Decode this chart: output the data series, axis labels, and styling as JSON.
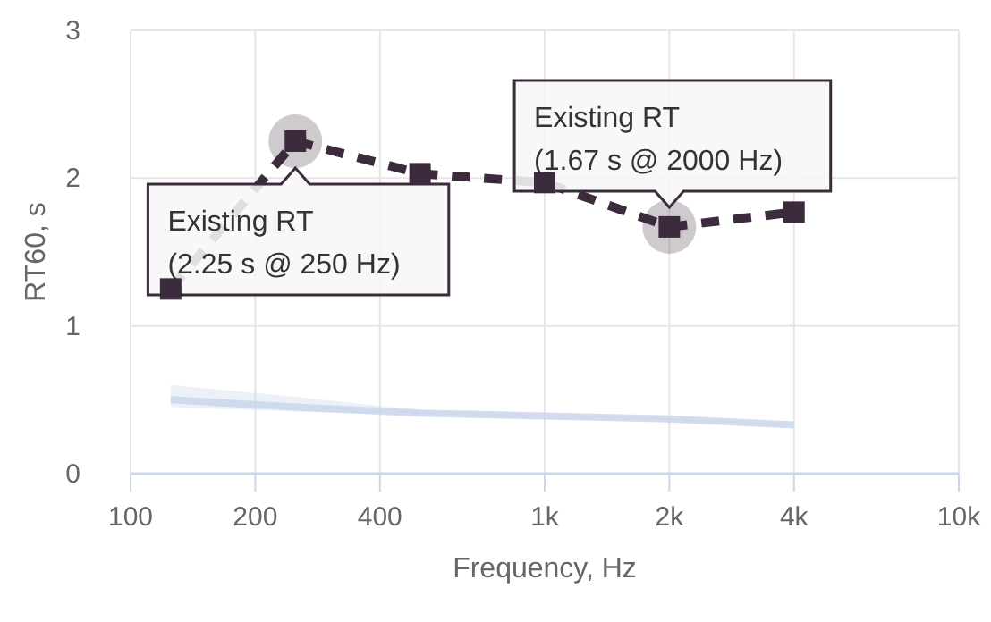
{
  "chart_data": {
    "type": "line",
    "xlabel": "Frequency, Hz",
    "ylabel": "RT60, s",
    "x": [
      125,
      250,
      500,
      1000,
      2000,
      4000
    ],
    "series": [
      {
        "color": "#3b2b3d",
        "values": [
          1.25,
          2.25,
          2.03,
          1.97,
          1.67,
          1.77
        ],
        "marker": "square",
        "line_style": "dashed"
      },
      {
        "color": "#c8d5e8",
        "values": [
          0.5,
          0.45,
          0.41,
          0.39,
          0.37,
          0.33
        ],
        "marker": "none",
        "line_style": "solid",
        "lower": [
          0.45,
          0.42,
          0.4,
          0.38,
          0.36,
          0.32
        ],
        "upper": [
          0.6,
          0.52,
          0.43,
          0.4,
          0.38,
          0.34
        ]
      }
    ],
    "log": "x",
    "xlim": [
      100,
      10000
    ],
    "xticks": [
      100,
      200,
      400,
      {
        "value": 1000,
        "label": "1k"
      },
      {
        "value": 2000,
        "label": "2k"
      },
      {
        "value": 4000,
        "label": "4k"
      },
      {
        "value": 10000,
        "label": "10k"
      }
    ],
    "ylim": [
      0,
      3
    ],
    "yticks": [
      0,
      1,
      2,
      3
    ],
    "grid": true,
    "annotations": [
      {
        "text": "Existing RT\n(2.25 s @ 250 Hz)",
        "x": 250,
        "y": 2.25
      },
      {
        "text": "Existing RT\n(1.67 s @ 2000 Hz)",
        "x": 2000,
        "y": 1.67
      }
    ]
  }
}
